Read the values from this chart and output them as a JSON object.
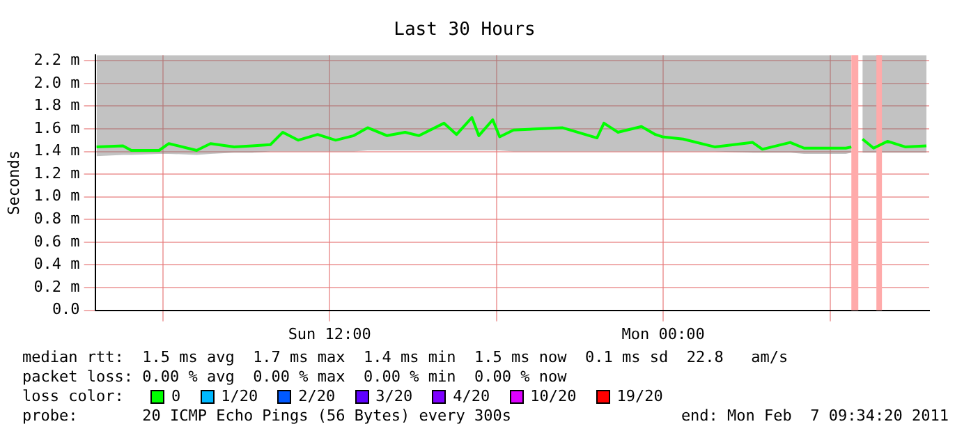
{
  "chart_data": {
    "type": "line",
    "title": "Last 30 Hours",
    "ylabel": "Seconds",
    "x": [
      "2011-02-06T03:37",
      "2011-02-06T04:34",
      "2011-02-06T04:52",
      "2011-02-06T05:52",
      "2011-02-06T06:13",
      "2011-02-06T07:13",
      "2011-02-06T07:43",
      "2011-02-06T08:34",
      "2011-02-06T09:13",
      "2011-02-06T09:52",
      "2011-02-06T10:19",
      "2011-02-06T10:52",
      "2011-02-06T11:34",
      "2011-02-06T12:13",
      "2011-02-06T12:52",
      "2011-02-06T13:22",
      "2011-02-06T14:04",
      "2011-02-06T14:43",
      "2011-02-06T15:13",
      "2011-02-06T16:07",
      "2011-02-06T16:34",
      "2011-02-06T17:07",
      "2011-02-06T17:22",
      "2011-02-06T17:52",
      "2011-02-06T18:07",
      "2011-02-06T18:37",
      "2011-02-06T20:22",
      "2011-02-06T21:37",
      "2011-02-06T21:52",
      "2011-02-06T22:22",
      "2011-02-06T23:13",
      "2011-02-06T23:43",
      "2011-02-06T23:58",
      "2011-02-07T00:43",
      "2011-02-07T01:52",
      "2011-02-07T03:13",
      "2011-02-07T03:34",
      "2011-02-07T04:34",
      "2011-02-07T05:04",
      "2011-02-07T06:34",
      "2011-02-07T06:46",
      null,
      "2011-02-07T07:10",
      "2011-02-07T07:34",
      "2011-02-07T08:04",
      "2011-02-07T08:43",
      "2011-02-07T09:28"
    ],
    "series": [
      {
        "color": "#00ff00",
        "values": [
          1.44,
          1.45,
          1.41,
          1.41,
          1.47,
          1.41,
          1.47,
          1.44,
          1.45,
          1.46,
          1.57,
          1.5,
          1.55,
          1.5,
          1.54,
          1.61,
          1.54,
          1.57,
          1.54,
          1.65,
          1.55,
          1.7,
          1.54,
          1.68,
          1.53,
          1.59,
          1.61,
          1.52,
          1.65,
          1.57,
          1.62,
          1.55,
          1.53,
          1.51,
          1.44,
          1.48,
          1.42,
          1.48,
          1.43,
          1.43,
          1.44,
          null,
          1.51,
          1.43,
          1.49,
          1.44,
          1.45
        ],
        "lower": [
          1.36,
          1.37,
          1.37,
          1.38,
          1.38,
          1.37,
          1.38,
          1.39,
          1.39,
          1.4,
          1.4,
          1.4,
          1.4,
          1.4,
          1.4,
          1.41,
          1.41,
          1.41,
          1.41,
          1.41,
          1.41,
          1.41,
          1.41,
          1.41,
          1.41,
          1.4,
          1.4,
          1.4,
          1.4,
          1.4,
          1.4,
          1.4,
          1.4,
          1.4,
          1.4,
          1.39,
          1.39,
          1.39,
          1.38,
          1.38,
          1.39,
          null,
          1.39,
          1.39,
          1.39,
          1.39,
          1.39
        ],
        "upper": [
          2.25,
          2.25,
          2.25,
          2.25,
          2.25,
          2.25,
          2.25,
          2.25,
          2.25,
          2.25,
          2.25,
          2.25,
          2.25,
          2.25,
          2.25,
          2.25,
          2.25,
          2.25,
          2.25,
          2.25,
          2.25,
          2.25,
          2.25,
          2.25,
          2.25,
          2.25,
          2.25,
          2.25,
          2.25,
          2.25,
          2.25,
          2.25,
          2.25,
          2.25,
          2.25,
          2.25,
          2.25,
          2.25,
          2.25,
          2.25,
          2.25,
          null,
          2.25,
          2.25,
          2.25,
          2.25,
          2.25
        ]
      }
    ],
    "xlim": [
      "2011-02-06T03:34",
      "2011-02-07T09:34"
    ],
    "xticks": [
      {
        "value": "2011-02-06T06:00",
        "label": null
      },
      {
        "value": "2011-02-06T12:00",
        "label": "Sun 12:00"
      },
      {
        "value": "2011-02-06T18:00",
        "label": null
      },
      {
        "value": "2011-02-07T00:00",
        "label": "Mon 00:00"
      },
      {
        "value": "2011-02-07T06:00",
        "label": null
      }
    ],
    "ylim": [
      0,
      2.25
    ],
    "yticks": [
      {
        "value": 0,
        "label": "0.0"
      },
      {
        "value": 0.2,
        "label": "0.2 m"
      },
      {
        "value": 0.4,
        "label": "0.4 m"
      },
      {
        "value": 0.6,
        "label": "0.6 m"
      },
      {
        "value": 0.8,
        "label": "0.8 m"
      },
      {
        "value": 1,
        "label": "1.0 m"
      },
      {
        "value": 1.2,
        "label": "1.2 m"
      },
      {
        "value": 1.4,
        "label": "1.4 m"
      },
      {
        "value": 1.6,
        "label": "1.6 m"
      },
      {
        "value": 1.8,
        "label": "1.8 m"
      },
      {
        "value": 2,
        "label": "2.0 m"
      },
      {
        "value": 2.2,
        "label": "2.2 m"
      }
    ],
    "grid": true,
    "legend": false,
    "marker": "none",
    "line_style": "solid",
    "bands": [
      {
        "axis": "x",
        "from": "2011-02-07T06:46",
        "to": "2011-02-07T07:01",
        "color": "#ffaaaa"
      },
      {
        "axis": "x",
        "from": "2011-02-07T07:40",
        "to": "2011-02-07T07:52",
        "color": "#ffaaaa"
      }
    ],
    "annotations": [
      "median rtt:  1.5 ms avg  1.7 ms max  1.4 ms min  1.5 ms now  0.1 ms sd  22.8   am/s",
      "packet loss: 0.00 % avg  0.00 % max  0.00 % min  0.00 % now",
      "loss color:",
      "0",
      "1/20",
      "2/20",
      "3/20",
      "4/20",
      "10/20",
      "19/20",
      "probe:       20 ICMP Echo Pings (56 Bytes) every 300s",
      "end: Mon Feb  7 09:34:20 2011"
    ]
  }
}
